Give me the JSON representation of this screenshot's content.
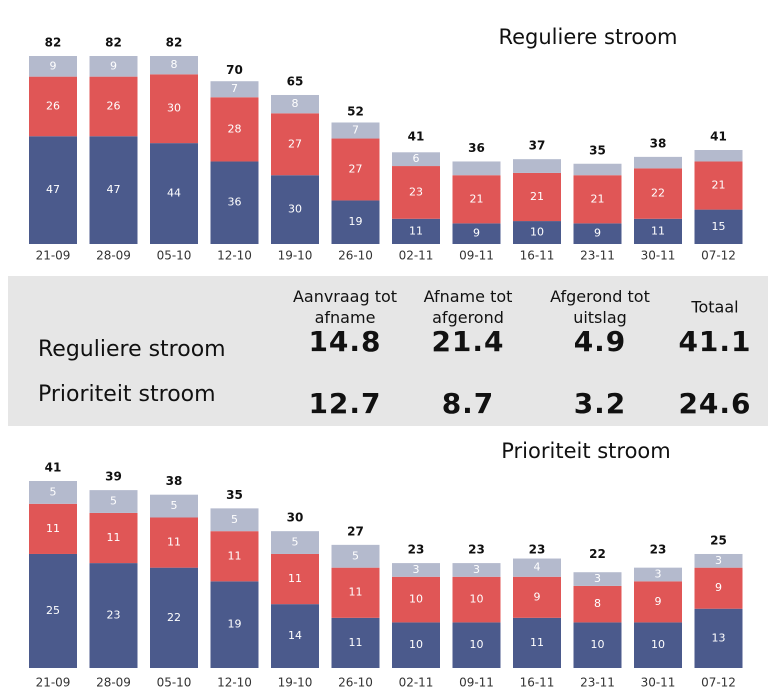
{
  "chart_data": [
    {
      "type": "bar",
      "stacked": true,
      "title": "Reguliere stroom",
      "categories": [
        "21-09",
        "28-09",
        "05-10",
        "12-10",
        "19-10",
        "26-10",
        "02-11",
        "09-11",
        "16-11",
        "23-11",
        "30-11",
        "07-12"
      ],
      "series": [
        {
          "color": "#4b5a8c",
          "values": [
            47,
            47,
            44,
            36,
            30,
            19,
            11,
            9,
            10,
            9,
            11,
            15
          ]
        },
        {
          "color": "#e05656",
          "values": [
            26,
            26,
            30,
            28,
            27,
            27,
            23,
            21,
            21,
            21,
            22,
            21
          ]
        },
        {
          "color": "#b4bacd",
          "values": [
            9,
            9,
            8,
            7,
            8,
            7,
            6,
            6,
            6,
            5,
            5,
            5
          ],
          "value_labels": [
            "9",
            "9",
            "8",
            "7",
            "8",
            "7",
            "6",
            null,
            null,
            null,
            null,
            null
          ]
        }
      ],
      "totals": [
        82,
        82,
        82,
        70,
        65,
        52,
        41,
        36,
        37,
        35,
        38,
        41
      ]
    },
    {
      "type": "bar",
      "stacked": true,
      "title": "Prioriteit stroom",
      "categories": [
        "21-09",
        "28-09",
        "05-10",
        "12-10",
        "19-10",
        "26-10",
        "02-11",
        "09-11",
        "16-11",
        "23-11",
        "30-11",
        "07-12"
      ],
      "series": [
        {
          "color": "#4b5a8c",
          "values": [
            25,
            23,
            22,
            19,
            14,
            11,
            10,
            10,
            11,
            10,
            10,
            13
          ]
        },
        {
          "color": "#e05656",
          "values": [
            11,
            11,
            11,
            11,
            11,
            11,
            10,
            10,
            9,
            8,
            9,
            9
          ]
        },
        {
          "color": "#b4bacd",
          "values": [
            5,
            5,
            5,
            5,
            5,
            5,
            3,
            3,
            4,
            3,
            3,
            3
          ]
        }
      ],
      "totals": [
        41,
        39,
        38,
        35,
        30,
        27,
        23,
        23,
        23,
        22,
        23,
        25
      ]
    }
  ],
  "table": {
    "header": [
      "Aanvraag tot afname",
      "Afname tot afgerond",
      "Afgerond tot uitslag",
      "Totaal"
    ],
    "rows": [
      [
        "Reguliere stroom",
        14.8,
        21.4,
        4.9,
        41.1
      ],
      [
        "Prioriteit stroom",
        12.7,
        8.7,
        3.2,
        24.6
      ]
    ]
  }
}
